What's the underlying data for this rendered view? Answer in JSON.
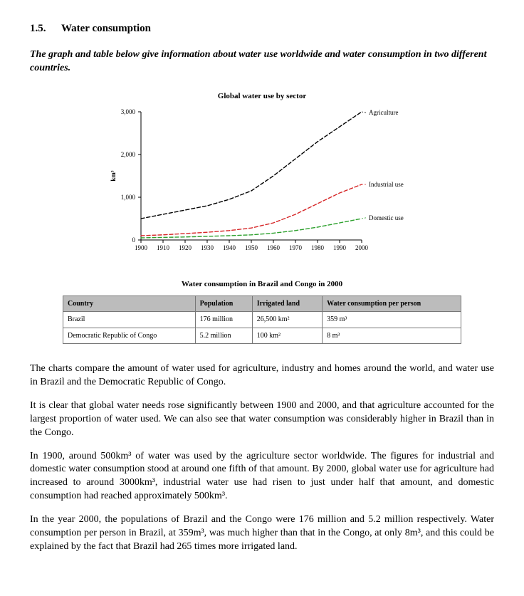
{
  "heading": {
    "number": "1.5.",
    "title": "Water consumption"
  },
  "intro": "The graph and table below give information about water use worldwide and water consumption in two different countries.",
  "chart": {
    "title": "Global water use by sector",
    "type": "line",
    "ylabel": "km³",
    "ylim": [
      0,
      3000
    ],
    "ytick_step": 1000,
    "xlim": [
      1900,
      2000
    ],
    "xtick_step": 10,
    "label_fontsize": 9,
    "title_fontsize": 11,
    "axis_color": "#000000",
    "background_color": "#ffffff",
    "line_width": 1.4,
    "dash_pattern": "5,3",
    "series": [
      {
        "name": "Agriculture",
        "color": "#000000",
        "points": [
          {
            "x": 1900,
            "y": 500
          },
          {
            "x": 1910,
            "y": 600
          },
          {
            "x": 1920,
            "y": 700
          },
          {
            "x": 1930,
            "y": 800
          },
          {
            "x": 1940,
            "y": 950
          },
          {
            "x": 1950,
            "y": 1150
          },
          {
            "x": 1960,
            "y": 1500
          },
          {
            "x": 1970,
            "y": 1900
          },
          {
            "x": 1980,
            "y": 2300
          },
          {
            "x": 1990,
            "y": 2650
          },
          {
            "x": 2000,
            "y": 3000
          }
        ],
        "label_y": 2980
      },
      {
        "name": "Industrial use",
        "color": "#d62728",
        "points": [
          {
            "x": 1900,
            "y": 100
          },
          {
            "x": 1910,
            "y": 120
          },
          {
            "x": 1920,
            "y": 150
          },
          {
            "x": 1930,
            "y": 180
          },
          {
            "x": 1940,
            "y": 220
          },
          {
            "x": 1950,
            "y": 280
          },
          {
            "x": 1960,
            "y": 400
          },
          {
            "x": 1970,
            "y": 600
          },
          {
            "x": 1980,
            "y": 850
          },
          {
            "x": 1990,
            "y": 1100
          },
          {
            "x": 2000,
            "y": 1300
          }
        ],
        "label_y": 1300
      },
      {
        "name": "Domestic use",
        "color": "#2ca02c",
        "points": [
          {
            "x": 1900,
            "y": 50
          },
          {
            "x": 1910,
            "y": 60
          },
          {
            "x": 1920,
            "y": 70
          },
          {
            "x": 1930,
            "y": 85
          },
          {
            "x": 1940,
            "y": 100
          },
          {
            "x": 1950,
            "y": 120
          },
          {
            "x": 1960,
            "y": 160
          },
          {
            "x": 1970,
            "y": 220
          },
          {
            "x": 1980,
            "y": 300
          },
          {
            "x": 1990,
            "y": 400
          },
          {
            "x": 2000,
            "y": 500
          }
        ],
        "label_y": 520
      }
    ]
  },
  "table": {
    "title": "Water consumption in Brazil and Congo in 2000",
    "columns": [
      "Country",
      "Population",
      "Irrigated land",
      "Water consumption per person"
    ],
    "rows": [
      [
        "Brazil",
        "176 million",
        "26,500 km²",
        "359 m³"
      ],
      [
        "Democratic Republic of Congo",
        "5.2 million",
        "100 km²",
        "8 m³"
      ]
    ],
    "header_bg": "#bcbcbc",
    "border_color": "#777777",
    "font_size": 10
  },
  "paragraphs": [
    "The charts compare the amount of water used for agriculture, industry and homes around the world, and water use in Brazil and the Democratic Republic of Congo.",
    "It is clear that global water needs rose significantly between 1900 and 2000, and that agriculture accounted for the largest proportion of water used. We can also see that water consumption was considerably higher in Brazil than in the Congo.",
    "In 1900, around 500km³ of water was used by the agriculture sector worldwide. The figures for industrial and domestic water consumption stood at around one fifth of that amount. By 2000, global water use for agriculture had increased to around 3000km³, industrial water use had risen to just under half that amount, and domestic consumption had reached approximately 500km³.",
    "In the year 2000, the populations of Brazil and the Congo were 176 million and 5.2 million respectively. Water consumption per person in Brazil, at 359m³, was much higher than that in the Congo, at only 8m³, and this could be explained by the fact that Brazil had 265 times more irrigated land."
  ]
}
